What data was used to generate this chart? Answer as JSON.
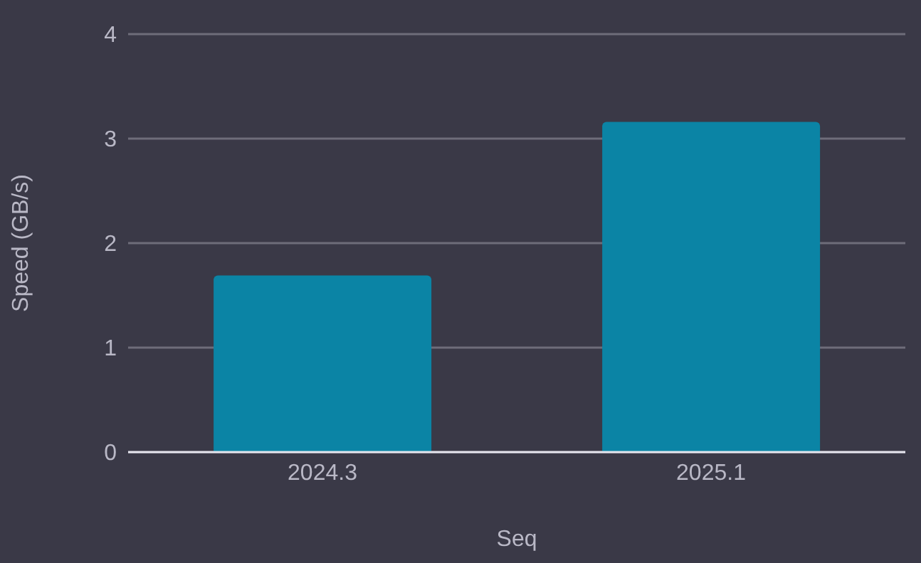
{
  "chart_data": {
    "type": "bar",
    "categories": [
      "2024.3",
      "2025.1"
    ],
    "values": [
      1.69,
      3.16
    ],
    "color": "#0b84a5",
    "xlabel": "Seq",
    "ylabel": "Speed (GB/s)",
    "ylim": [
      0,
      4
    ],
    "yticks": [
      0,
      1,
      2,
      3,
      4
    ],
    "grid": "y"
  }
}
